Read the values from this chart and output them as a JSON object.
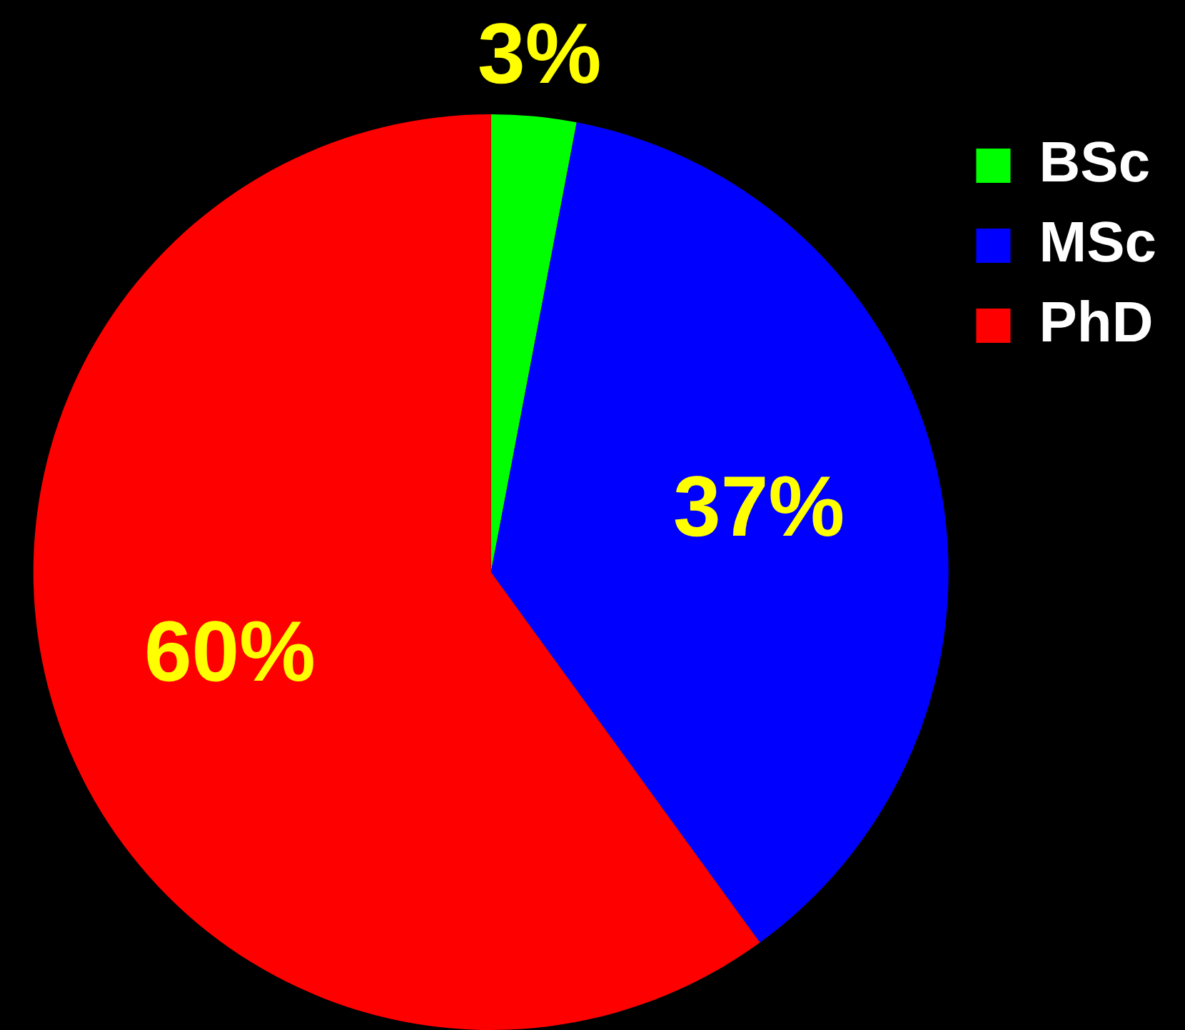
{
  "chart_data": {
    "type": "pie",
    "categories": [
      "BSc",
      "MSc",
      "PhD"
    ],
    "values": [
      3,
      37,
      60
    ],
    "colors": [
      "#00ff00",
      "#0000ff",
      "#ff0000"
    ],
    "value_labels": [
      "3%",
      "37%",
      "60%"
    ],
    "legend": "top right"
  }
}
